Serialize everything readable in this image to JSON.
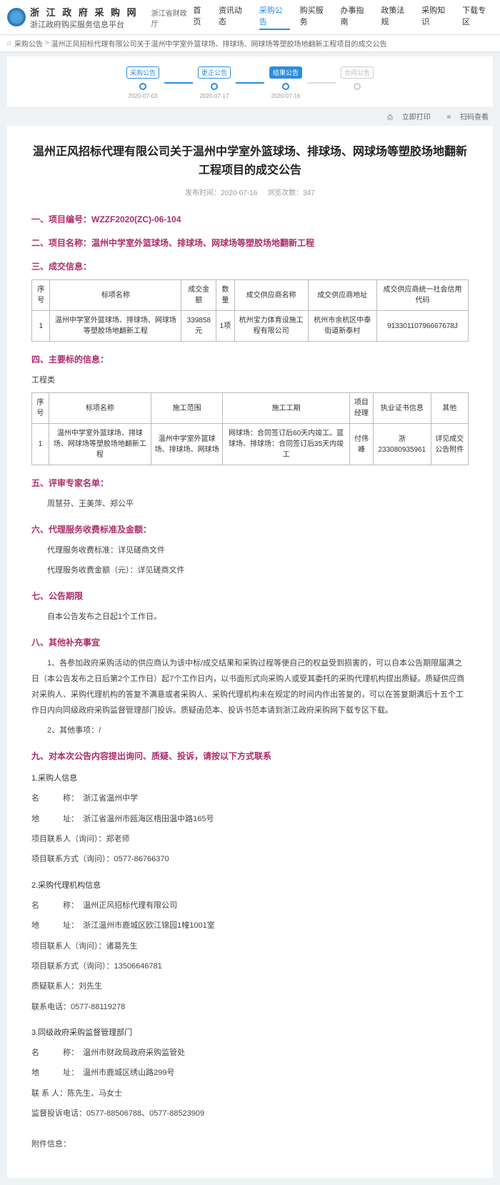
{
  "header": {
    "site_title1": "浙 江 政 府 采 购 网",
    "site_title2": "浙江政府购买服务信息平台",
    "dept": "浙江省财政厅",
    "nav": [
      "首页",
      "资讯动态",
      "采购公告",
      "购买服务",
      "办事指南",
      "政策法规",
      "采购知识",
      "下载专区"
    ],
    "nav_active_index": 2
  },
  "breadcrumb": {
    "home_icon": "⌂",
    "items": [
      "采购公告",
      "温州正风招标代理有限公司关于温州中学室外篮球场、排球场、网球场等塑胶场地翻新工程项目的成交公告"
    ]
  },
  "timeline": {
    "steps": [
      {
        "label": "采购公告",
        "date": "2020-07-03",
        "active": true
      },
      {
        "label": "更正公告",
        "date": "2020-07-17",
        "active": true
      },
      {
        "label": "结果公告",
        "date": "2020-07-16",
        "active": true,
        "current": true
      },
      {
        "label": "合同公告",
        "date": "",
        "active": false
      }
    ]
  },
  "actions": {
    "print": "立即打印",
    "scan": "扫码查看",
    "print_icon": "⎙",
    "scan_icon": "⌗"
  },
  "doc": {
    "title": "温州正风招标代理有限公司关于温州中学室外篮球场、排球场、网球场等塑胶场地翻新工程项目的成交公告",
    "meta_left_label": "发布时间：",
    "meta_left": "2020-07-16",
    "meta_right_label": "浏览次数：",
    "meta_right": "347"
  },
  "s1": {
    "head": "一、项目编号：WZZF2020(ZC)-06-104"
  },
  "s2": {
    "head": "二、项目名称：温州中学室外篮球场、排球场、网球场等塑胶场地翻新工程"
  },
  "s3": {
    "head": "三、成交信息：",
    "table": {
      "headers": [
        "序号",
        "标项名称",
        "成交金额",
        "数量",
        "成交供应商名称",
        "成交供应商地址",
        "成交供应商统一社会信用代码"
      ],
      "rows": [
        [
          "1",
          "温州中学室外篮球场、排球场、网球场等塑胶场地翻新工程",
          "339858元",
          "1项",
          "杭州宝力体育设施工程有限公司",
          "杭州市余杭区中泰街道新泰村",
          "91330110796667678J"
        ]
      ]
    }
  },
  "s4": {
    "head": "四、主要标的信息：",
    "category": "工程类",
    "table": {
      "headers": [
        "序号",
        "标项名称",
        "施工范围",
        "施工工期",
        "项目经理",
        "执业证书信息",
        "其他"
      ],
      "rows": [
        [
          "1",
          "温州中学室外篮球场、排球场、网球场等塑胶场地翻新工程",
          "温州中学室外篮球场、排球场、网球场",
          "网球场：合同签订后60天内竣工。篮球场、排球场：合同签订后35天内竣工",
          "付伟峰",
          "浙233080935961",
          "详见成交公告附件"
        ]
      ]
    }
  },
  "s5": {
    "head": "五、评审专家名单：",
    "text": "周慧芬、王美萍、郑公平"
  },
  "s6": {
    "head": "六、代理服务收费标准及金额：",
    "line1": "代理服务收费标准：详见磋商文件",
    "line2": "代理服务收费金额（元）：详见磋商文件"
  },
  "s7": {
    "head": "七、公告期限",
    "text": "自本公告发布之日起1个工作日。"
  },
  "s8": {
    "head": "八、其他补充事宜",
    "p1": "1、各参加政府采购活动的供应商认为该中标/成交结果和采购过程等使自己的权益受到损害的，可以自本公告期限届满之日（本公告发布之日后第2个工作日）起7个工作日内，以书面形式向采购人或受其委托的采购代理机构提出质疑。质疑供应商对采购人、采购代理机构的答复不满意或者采购人、采购代理机构未在规定的时间内作出答复的，可以在答复期满后十五个工作日内向同级政府采购监督管理部门投诉。质疑函范本、投诉书范本请到浙江政府采购网下载专区下载。",
    "p2": "2、其他事项：/"
  },
  "s9": {
    "head": "九、对本次公告内容提出询问、质疑、投诉，请按以下方式联系",
    "g1": {
      "title": "1.采购人信息",
      "name_label": "名　　　称",
      "name": "浙江省温州中学",
      "addr_label": "地　　　址",
      "addr": "浙江省温州市瓯海区梧田温中路165号",
      "contact_label": "项目联系人（询问）：",
      "contact": "郑老师",
      "tel_label": "项目联系方式（询问）：",
      "tel": "0577-86766370"
    },
    "g2": {
      "title": "2.采购代理机构信息",
      "name_label": "名　　　称",
      "name": "温州正风招标代理有限公司",
      "addr_label": "地　　　址",
      "addr": "浙江温州市鹿城区欧江锦园1幢1001室",
      "contact_label": "项目联系人（询问）：",
      "contact": "诸葛先生",
      "tel_label": "项目联系方式（询问）：",
      "tel": "13506646781",
      "qcontact_label": "质疑联系人：",
      "qcontact": "刘先生",
      "qtel_label": "联系电话：",
      "qtel": "0577-88119278"
    },
    "g3": {
      "title": "3.同级政府采购监督管理部门",
      "name_label": "名　　　称",
      "name": "温州市财政局政府采购监管处",
      "addr_label": "地　　　址",
      "addr": "温州市鹿城区绣山路299号",
      "contact_label": "联 系 人：",
      "contact": "陈先生、马女士",
      "tel_label": "监督投诉电话：",
      "tel": "0577-88506788、0577-88523909"
    }
  },
  "attachments_label": "附件信息："
}
